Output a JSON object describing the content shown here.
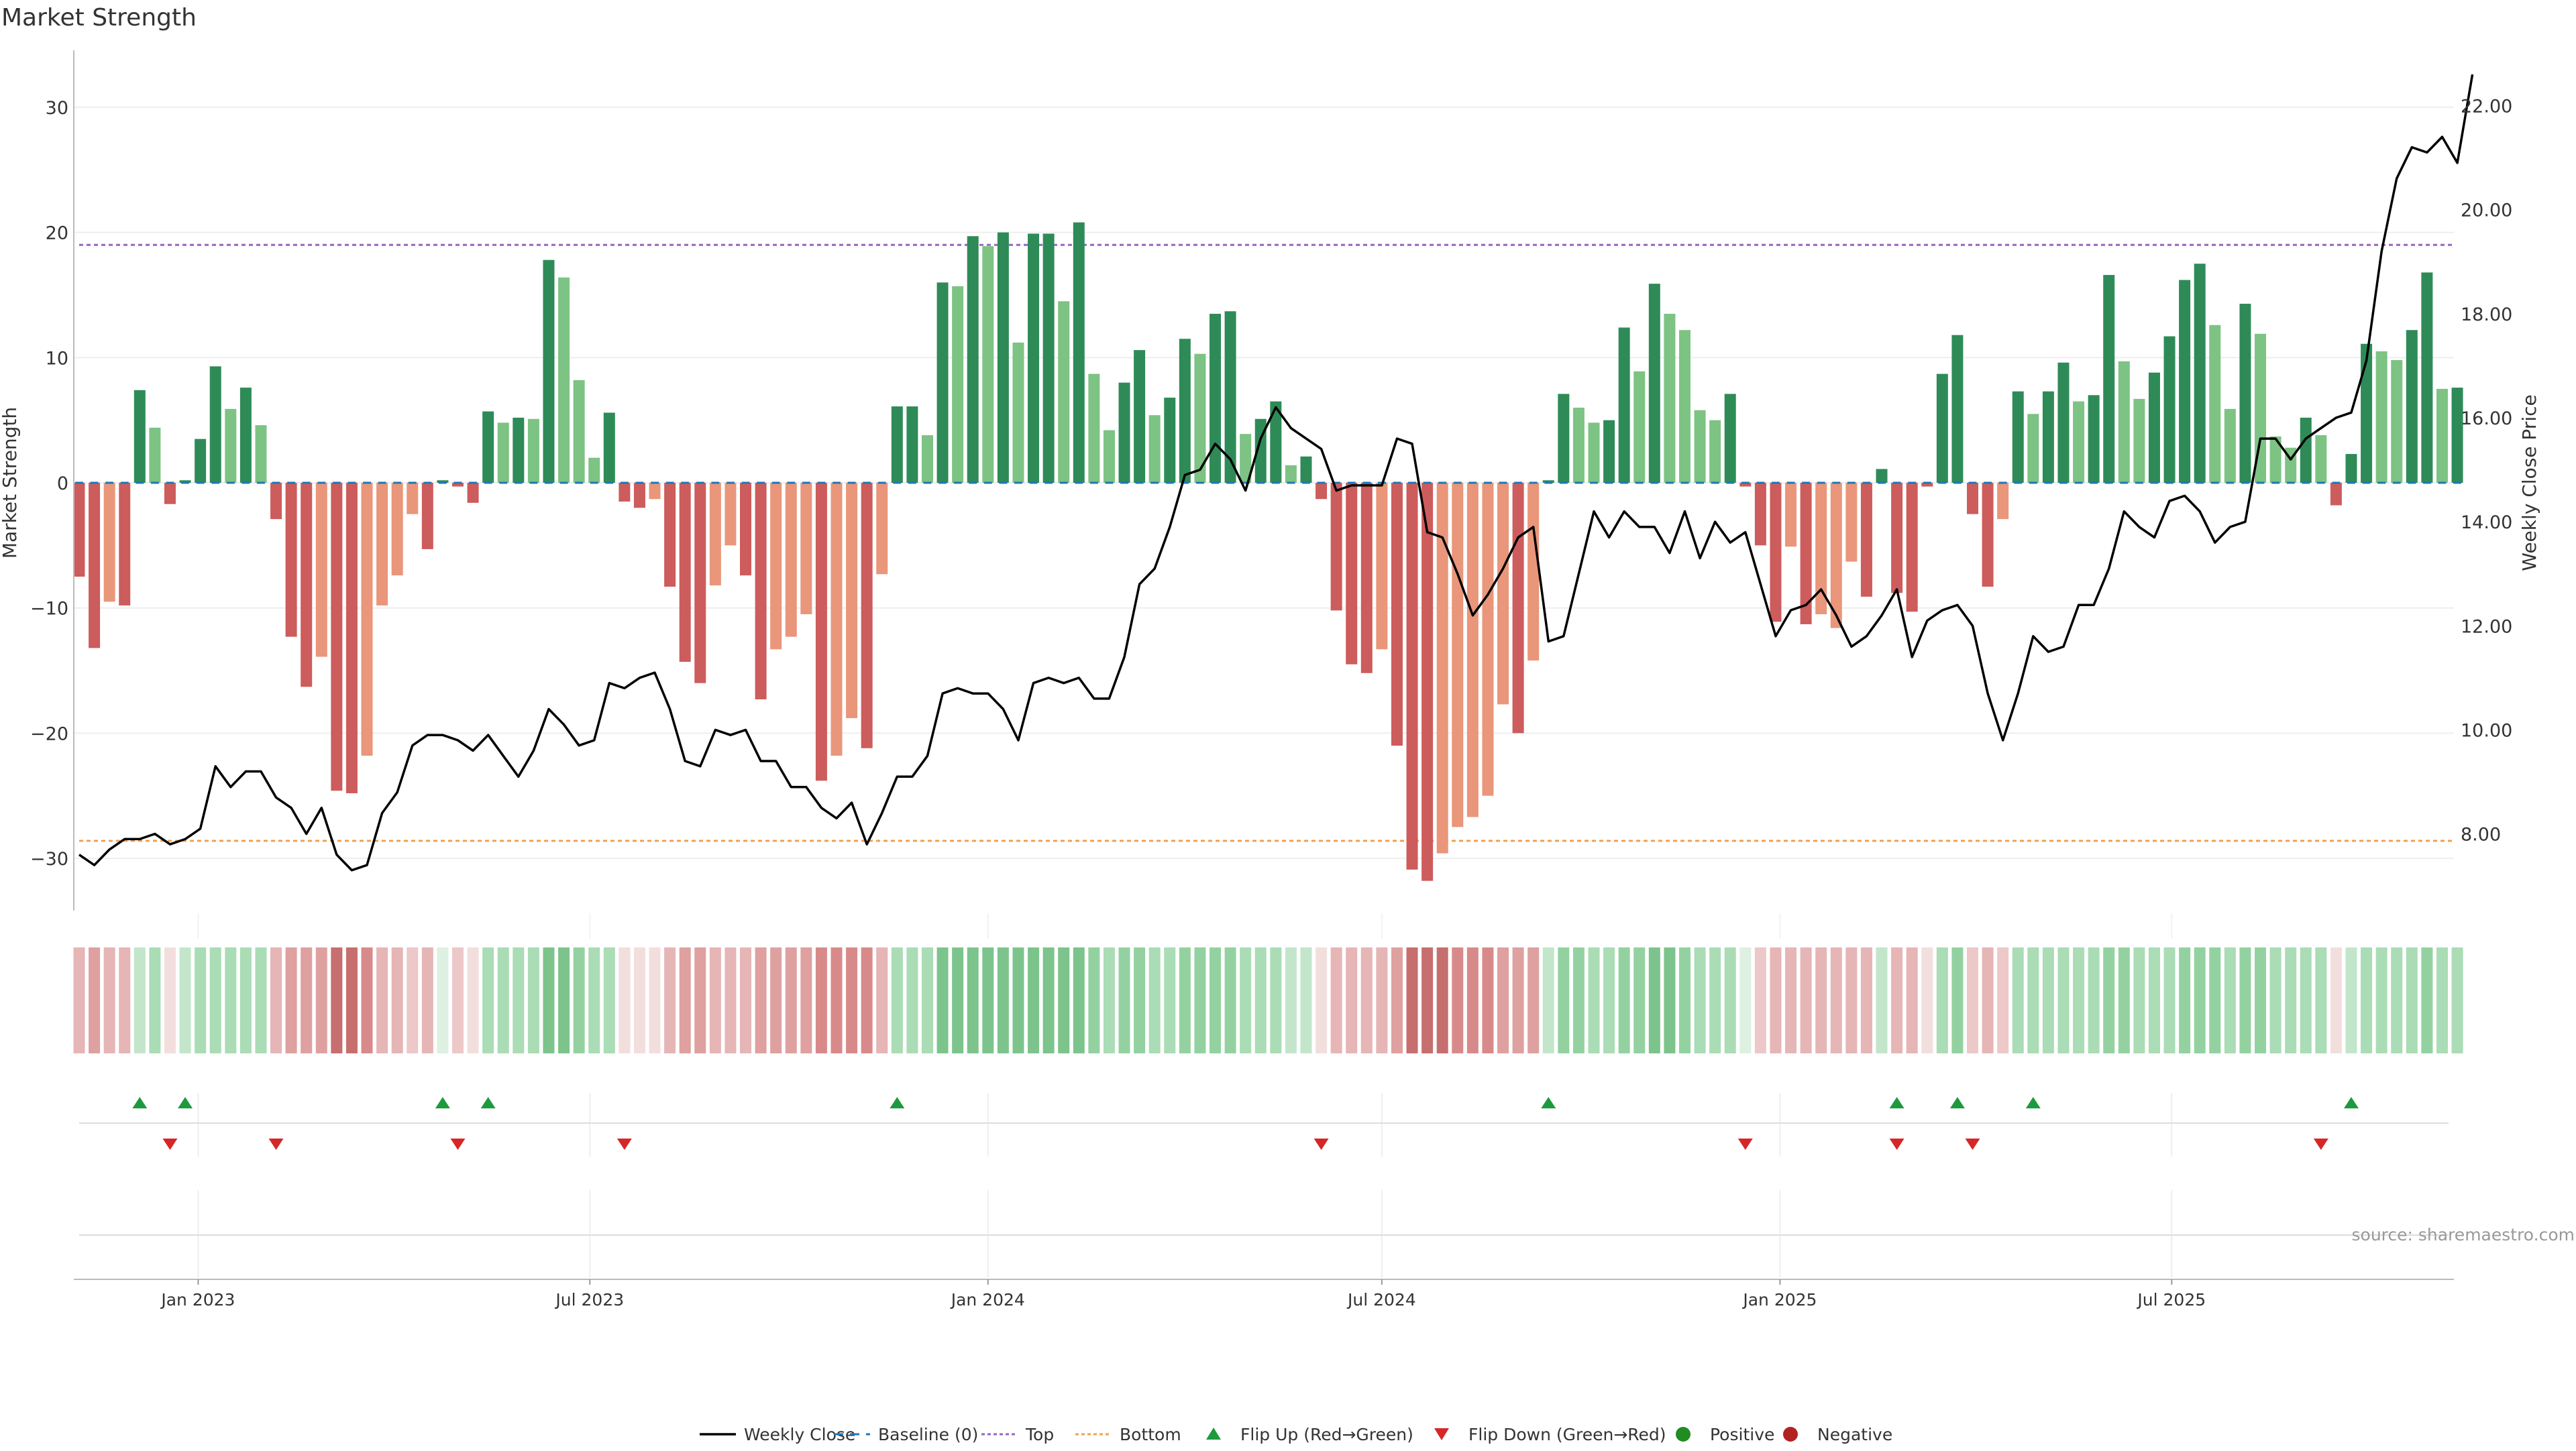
{
  "title": "Market Strength",
  "source": "source: sharemaestro.com",
  "colors": {
    "strong_pos": "#2e8b57",
    "weak_pos": "#7dc383",
    "strong_neg": "#cd5c5c",
    "weak_neg": "#e9967a",
    "price_line": "#000000",
    "baseline": "#1f77b4",
    "top": "#9467bd",
    "bottom": "#f0a050",
    "flip_up": "#1e9a3e",
    "flip_down": "#d62728",
    "positive": "#228b22",
    "negative": "#b22222"
  },
  "chart_data": {
    "type": "bar",
    "title": "Market Strength",
    "ylabel": "Market Strength",
    "y2label": "Weekly Close Price",
    "ylim": [
      -34,
      34
    ],
    "y2lim": [
      6.5,
      23
    ],
    "yticks": [
      "30",
      "20",
      "10",
      "0",
      "−10",
      "−20",
      "−30"
    ],
    "y2ticks": [
      "22.00",
      "20.00",
      "18.00",
      "16.00",
      "14.00",
      "12.00",
      "10.00",
      "8.00"
    ],
    "top_level": 19,
    "bottom_level": -28.6,
    "x_start": "2022-11-07",
    "xticks": [
      {
        "label": "Jan 2023",
        "date": "2023-01-01"
      },
      {
        "label": "Jul 2023",
        "date": "2023-07-01"
      },
      {
        "label": "Jan 2024",
        "date": "2024-01-01"
      },
      {
        "label": "Jul 2024",
        "date": "2024-07-01"
      },
      {
        "label": "Jan 2025",
        "date": "2025-01-01"
      },
      {
        "label": "Jul 2025",
        "date": "2025-07-01"
      }
    ],
    "strength": [
      -7.5,
      -13.2,
      -9.5,
      -9.8,
      7.4,
      4.4,
      -1.7,
      0.2,
      3.5,
      9.3,
      5.9,
      7.6,
      4.6,
      -2.9,
      -12.3,
      -16.3,
      -13.9,
      -24.6,
      -24.8,
      -21.8,
      -9.8,
      -7.4,
      -2.5,
      -5.3,
      0.2,
      -0.3,
      -1.6,
      5.7,
      4.8,
      5.2,
      5.1,
      17.8,
      16.4,
      8.2,
      2.0,
      5.6,
      -1.5,
      -2.0,
      -1.3,
      -8.3,
      -14.3,
      -16.0,
      -8.2,
      -5.0,
      -7.4,
      -17.3,
      -13.3,
      -12.3,
      -10.5,
      -23.8,
      -21.8,
      -18.8,
      -21.2,
      -7.3,
      6.1,
      6.1,
      3.8,
      16.0,
      15.7,
      19.7,
      18.9,
      20.0,
      11.2,
      19.9,
      19.9,
      14.5,
      20.8,
      8.7,
      4.2,
      8.0,
      10.6,
      5.4,
      6.8,
      11.5,
      10.3,
      13.5,
      13.7,
      3.9,
      5.1,
      6.5,
      1.4,
      2.1,
      -1.3,
      -10.2,
      -14.5,
      -15.2,
      -13.3,
      -21.0,
      -30.9,
      -31.8,
      -29.6,
      -27.5,
      -26.7,
      -25.0,
      -17.7,
      -20.0,
      -14.2,
      0.2,
      7.1,
      6.0,
      4.8,
      5.0,
      12.4,
      8.9,
      15.9,
      13.5,
      12.2,
      5.8,
      5.0,
      7.1,
      -0.3,
      -5.0,
      -11.1,
      -5.1,
      -11.3,
      -10.5,
      -11.6,
      -6.3,
      -9.1,
      1.1,
      -8.8,
      -10.3,
      -0.3,
      8.7,
      11.8,
      -2.5,
      -8.3,
      -2.9,
      7.3,
      5.5,
      7.3,
      9.6,
      6.5,
      7.0,
      16.6,
      9.7,
      6.7,
      8.8,
      11.7,
      16.2,
      17.5,
      12.6,
      5.9,
      14.3,
      11.9,
      3.7,
      2.8,
      5.2,
      3.8,
      -1.8,
      2.3,
      11.1,
      10.5,
      9.8,
      12.2,
      16.8,
      7.5,
      7.6
    ],
    "strength_colors": [
      "strong_neg",
      "strong_neg",
      "weak_neg",
      "strong_neg",
      "strong_pos",
      "weak_pos",
      "strong_neg",
      "strong_pos",
      "strong_pos",
      "strong_pos",
      "weak_pos",
      "strong_pos",
      "weak_pos",
      "strong_neg",
      "strong_neg",
      "strong_neg",
      "weak_neg",
      "strong_neg",
      "strong_neg",
      "weak_neg",
      "weak_neg",
      "weak_neg",
      "weak_neg",
      "strong_neg",
      "strong_pos",
      "strong_neg",
      "strong_neg",
      "strong_pos",
      "weak_pos",
      "strong_pos",
      "weak_pos",
      "strong_pos",
      "weak_pos",
      "weak_pos",
      "weak_pos",
      "strong_pos",
      "strong_neg",
      "strong_neg",
      "weak_neg",
      "strong_neg",
      "strong_neg",
      "strong_neg",
      "weak_neg",
      "weak_neg",
      "strong_neg",
      "strong_neg",
      "weak_neg",
      "weak_neg",
      "weak_neg",
      "strong_neg",
      "weak_neg",
      "weak_neg",
      "strong_neg",
      "weak_neg",
      "strong_pos",
      "strong_pos",
      "weak_pos",
      "strong_pos",
      "weak_pos",
      "strong_pos",
      "weak_pos",
      "strong_pos",
      "weak_pos",
      "strong_pos",
      "strong_pos",
      "weak_pos",
      "strong_pos",
      "weak_pos",
      "weak_pos",
      "strong_pos",
      "strong_pos",
      "weak_pos",
      "strong_pos",
      "strong_pos",
      "weak_pos",
      "strong_pos",
      "strong_pos",
      "weak_pos",
      "strong_pos",
      "strong_pos",
      "weak_pos",
      "strong_pos",
      "strong_neg",
      "strong_neg",
      "strong_neg",
      "strong_neg",
      "weak_neg",
      "strong_neg",
      "strong_neg",
      "strong_neg",
      "weak_neg",
      "weak_neg",
      "weak_neg",
      "weak_neg",
      "weak_neg",
      "strong_neg",
      "weak_neg",
      "strong_pos",
      "strong_pos",
      "weak_pos",
      "weak_pos",
      "strong_pos",
      "strong_pos",
      "weak_pos",
      "strong_pos",
      "weak_pos",
      "weak_pos",
      "weak_pos",
      "weak_pos",
      "strong_pos",
      "strong_neg",
      "strong_neg",
      "strong_neg",
      "weak_neg",
      "strong_neg",
      "weak_neg",
      "weak_neg",
      "weak_neg",
      "strong_neg",
      "strong_pos",
      "strong_neg",
      "strong_neg",
      "strong_neg",
      "strong_pos",
      "strong_pos",
      "strong_neg",
      "strong_neg",
      "weak_neg",
      "strong_pos",
      "weak_pos",
      "strong_pos",
      "strong_pos",
      "weak_pos",
      "strong_pos",
      "strong_pos",
      "weak_pos",
      "weak_pos",
      "strong_pos",
      "strong_pos",
      "strong_pos",
      "strong_pos",
      "weak_pos",
      "weak_pos",
      "strong_pos",
      "weak_pos",
      "weak_pos",
      "weak_pos",
      "strong_pos",
      "weak_pos",
      "strong_neg",
      "strong_pos",
      "strong_pos",
      "weak_pos",
      "weak_pos",
      "strong_pos",
      "strong_pos",
      "weak_pos",
      "strong_pos"
    ],
    "price": [
      7.6,
      7.4,
      7.7,
      7.9,
      7.9,
      8.0,
      7.8,
      7.9,
      8.1,
      9.3,
      8.9,
      9.2,
      9.2,
      8.7,
      8.5,
      8.0,
      8.5,
      7.6,
      7.3,
      7.4,
      8.4,
      8.8,
      9.7,
      9.9,
      9.9,
      9.8,
      9.6,
      9.9,
      9.5,
      9.1,
      9.6,
      10.4,
      10.1,
      9.7,
      9.8,
      10.9,
      10.8,
      11.0,
      11.1,
      10.4,
      9.4,
      9.3,
      10.0,
      9.9,
      10.0,
      9.4,
      9.4,
      8.9,
      8.9,
      8.5,
      8.3,
      8.6,
      7.8,
      8.4,
      9.1,
      9.1,
      9.5,
      10.7,
      10.8,
      10.7,
      10.7,
      10.4,
      9.8,
      10.9,
      11.0,
      10.9,
      11.0,
      10.6,
      10.6,
      11.4,
      12.8,
      13.1,
      13.9,
      14.9,
      15.0,
      15.5,
      15.2,
      14.6,
      15.6,
      16.2,
      15.8,
      15.6,
      15.4,
      14.6,
      14.7,
      14.7,
      14.7,
      15.6,
      15.5,
      13.8,
      13.7,
      13.0,
      12.2,
      12.6,
      13.1,
      13.7,
      13.9,
      11.7,
      11.8,
      13.0,
      14.2,
      13.7,
      14.2,
      13.9,
      13.9,
      13.4,
      14.2,
      13.3,
      14.0,
      13.6,
      13.8,
      12.8,
      11.8,
      12.3,
      12.4,
      12.7,
      12.2,
      11.6,
      11.8,
      12.2,
      12.7,
      11.4,
      12.1,
      12.3,
      12.4,
      12.0,
      10.7,
      9.8,
      10.7,
      11.8,
      11.5,
      11.6,
      12.4,
      12.4,
      13.1,
      14.2,
      13.9,
      13.7,
      14.4,
      14.5,
      14.2,
      13.6,
      13.9,
      14.0,
      15.6,
      15.6,
      15.2,
      15.6,
      15.8,
      16.0,
      16.1,
      17.1,
      19.2,
      20.6,
      21.2,
      21.1,
      21.4,
      20.9,
      22.6
    ],
    "heat_shade": [
      3,
      4,
      3,
      3,
      -2,
      -3,
      1,
      -2,
      -3,
      -3,
      -3,
      -3,
      -3,
      3,
      4,
      4,
      4,
      6,
      6,
      5,
      3,
      3,
      2,
      3,
      -1,
      2,
      1,
      -3,
      -3,
      -3,
      -3,
      -5,
      -5,
      -4,
      -3,
      -3,
      1,
      1,
      1,
      3,
      4,
      4,
      3,
      3,
      3,
      4,
      4,
      4,
      4,
      5,
      5,
      5,
      5,
      3,
      -3,
      -3,
      -3,
      -5,
      -5,
      -5,
      -5,
      -5,
      -5,
      -5,
      -5,
      -5,
      -5,
      -4,
      -3,
      -4,
      -4,
      -3,
      -3,
      -4,
      -4,
      -4,
      -4,
      -3,
      -3,
      -3,
      -2,
      -2,
      1,
      3,
      3,
      3,
      3,
      4,
      6,
      6,
      6,
      5,
      5,
      5,
      4,
      4,
      4,
      -2,
      -4,
      -4,
      -3,
      -3,
      -4,
      -4,
      -5,
      -5,
      -4,
      -3,
      -3,
      -3,
      -1,
      2,
      3,
      3,
      3,
      3,
      3,
      3,
      3,
      -2,
      3,
      3,
      1,
      -3,
      -4,
      2,
      3,
      2,
      -3,
      -3,
      -3,
      -3,
      -3,
      -3,
      -4,
      -4,
      -3,
      -3,
      -3,
      -4,
      -4,
      -4,
      -3,
      -4,
      -4,
      -3,
      -3,
      -3,
      -3,
      1,
      -2,
      -3,
      -3,
      -3,
      -3,
      -4,
      -3,
      -3
    ],
    "flip_up": [
      4,
      7,
      24,
      27,
      54,
      97,
      120,
      124,
      129,
      150
    ],
    "flip_down": [
      6,
      13,
      25,
      36,
      82,
      110,
      120,
      125,
      148
    ],
    "legend": [
      {
        "label": "Weekly Close",
        "kind": "line"
      },
      {
        "label": "Baseline (0)",
        "kind": "baseline"
      },
      {
        "label": "Top",
        "kind": "top"
      },
      {
        "label": "Bottom",
        "kind": "bottom"
      },
      {
        "label": "Flip Up (Red→Green)",
        "kind": "flip_up"
      },
      {
        "label": "Flip Down (Green→Red)",
        "kind": "flip_down"
      },
      {
        "label": "Positive",
        "kind": "positive"
      },
      {
        "label": "Negative",
        "kind": "negative"
      }
    ]
  }
}
